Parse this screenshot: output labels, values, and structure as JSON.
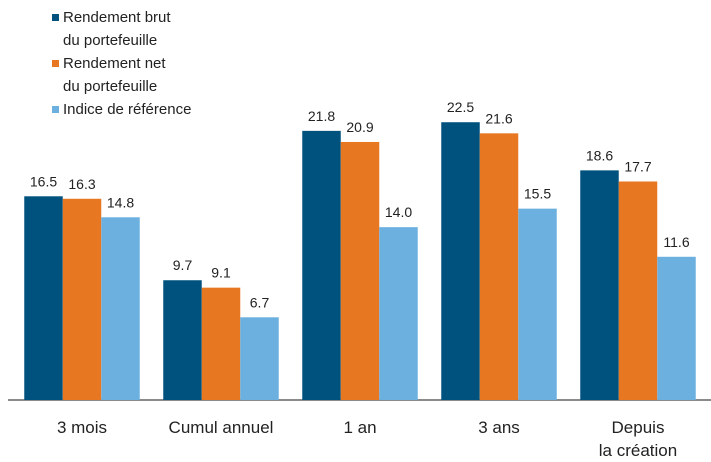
{
  "chart_data": {
    "type": "bar",
    "categories": [
      "3 mois",
      "Cumul annuel",
      "1 an",
      "3 ans",
      "Depuis\nla création"
    ],
    "series": [
      {
        "name": "Rendement brut\ndu portefeuille",
        "color": "#00527e",
        "values": [
          16.5,
          9.7,
          21.8,
          22.5,
          18.6
        ],
        "value_labels": [
          "16.5",
          "9.7",
          "21.8",
          "22.5",
          "18.6"
        ]
      },
      {
        "name": "Rendement net\ndu portefeuille",
        "color": "#e87722",
        "values": [
          16.3,
          9.1,
          20.9,
          21.6,
          17.7
        ],
        "value_labels": [
          "16.3",
          "9.1",
          "20.9",
          "21.6",
          "17.7"
        ]
      },
      {
        "name": "Indice de référence",
        "color": "#6cb0e0",
        "values": [
          14.8,
          6.7,
          14.0,
          15.5,
          11.6
        ],
        "value_labels": [
          "14.8",
          "6.7",
          "14.0",
          "15.5",
          "11.6"
        ]
      }
    ],
    "ylim": [
      0,
      32.4
    ],
    "legend": "top-left"
  }
}
